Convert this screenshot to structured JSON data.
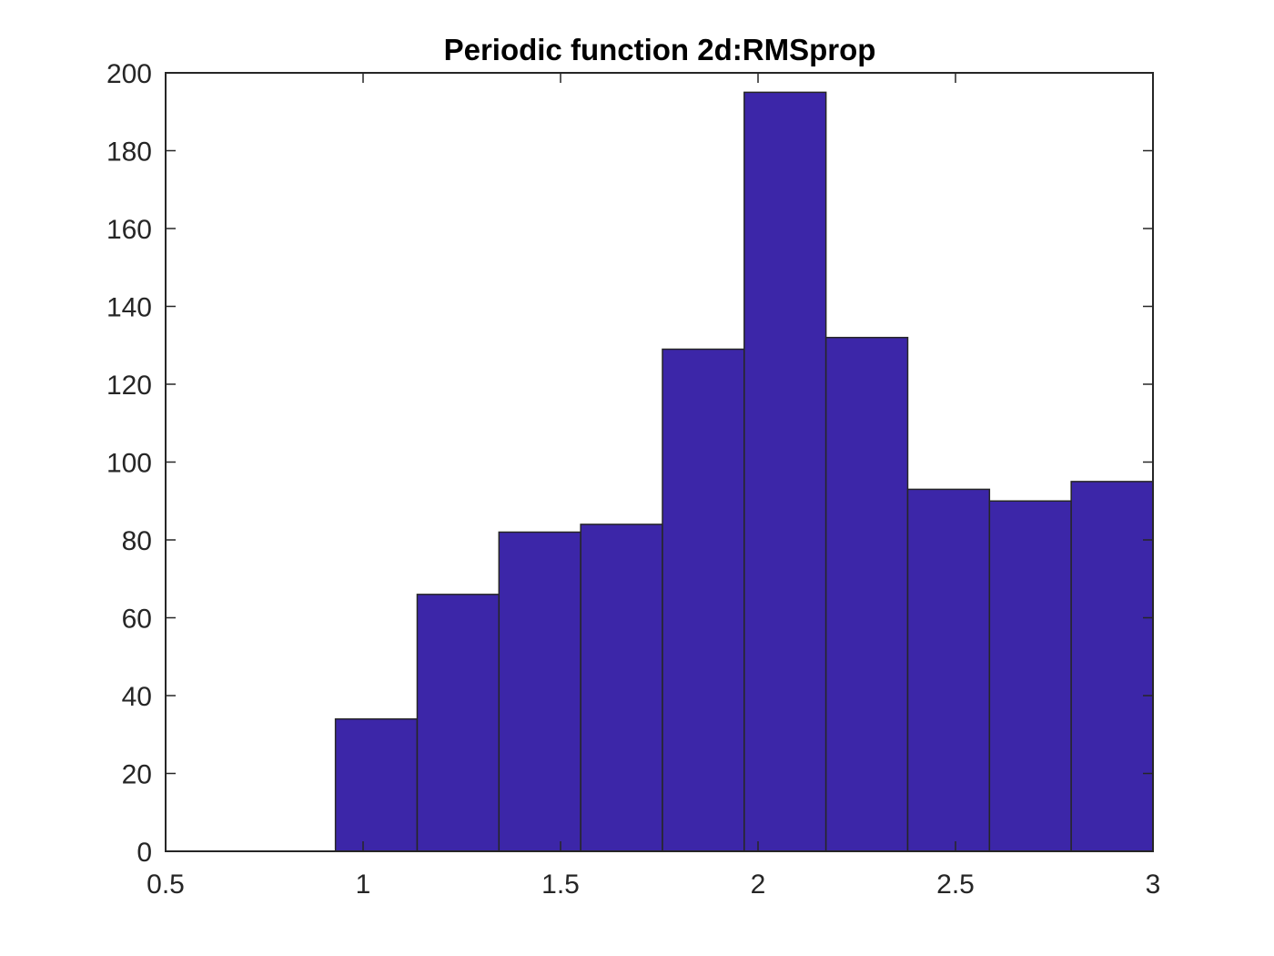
{
  "chart_data": {
    "type": "bar",
    "title": "Periodic function 2d:RMSprop",
    "xlabel": "",
    "ylabel": "",
    "xlim": [
      0.5,
      3
    ],
    "ylim": [
      0,
      200
    ],
    "xticks": [
      "0.5",
      "1",
      "1.5",
      "2",
      "2.5",
      "3"
    ],
    "yticks": [
      "0",
      "20",
      "40",
      "60",
      "80",
      "100",
      "120",
      "140",
      "160",
      "180",
      "200"
    ],
    "bin_edges": [
      0.93,
      1.137,
      1.344,
      1.551,
      1.758,
      1.965,
      2.172,
      2.379,
      2.586,
      2.793,
      3.0
    ],
    "values": [
      34,
      66,
      82,
      84,
      129,
      195,
      132,
      93,
      90,
      95
    ],
    "bar_color": "#3c26a8",
    "grid": false,
    "legend": "none"
  }
}
